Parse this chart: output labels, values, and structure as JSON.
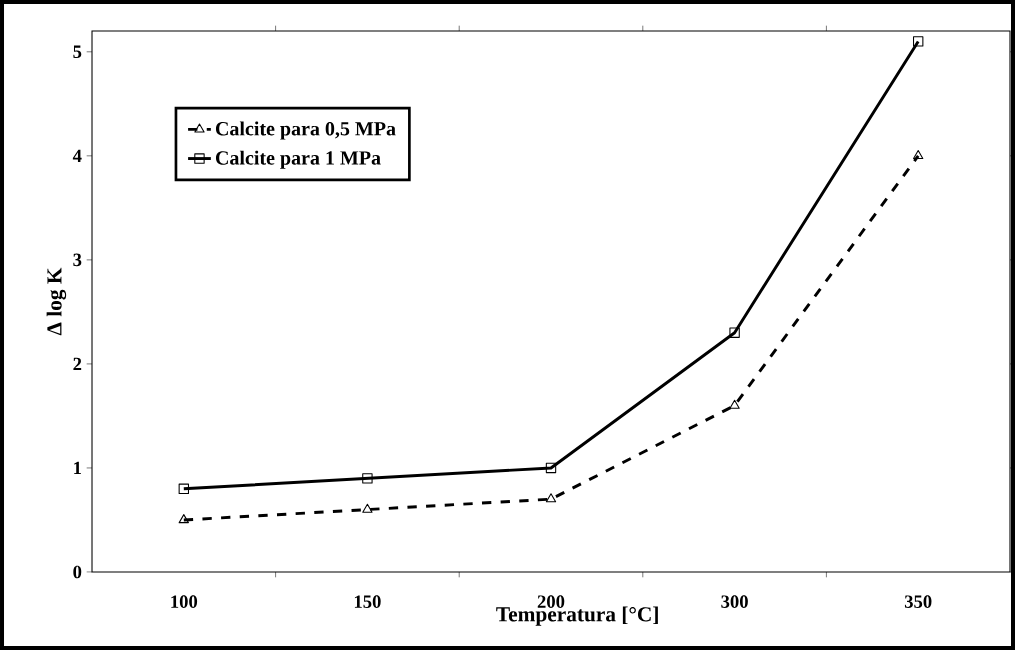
{
  "chart_data": {
    "type": "line",
    "xlabel": "Temperatura [°C]",
    "ylabel": "Δ log K",
    "categories": [
      "100",
      "150",
      "200",
      "300",
      "350"
    ],
    "series": [
      {
        "name": "Calcite para 0,5 MPa",
        "color": "#000000",
        "values": [
          0.5,
          0.6,
          0.7,
          1.6,
          4.0
        ],
        "marker": "triangle",
        "line_style": "dashed"
      },
      {
        "name": "Calcite para 1 MPa",
        "color": "#000000",
        "values": [
          0.8,
          0.9,
          1.0,
          2.3,
          5.1
        ],
        "marker": "square",
        "line_style": "solid"
      }
    ],
    "ylim": [
      0,
      5.2
    ],
    "yticks": [
      0,
      1,
      2,
      3,
      4,
      5
    ],
    "grid": false,
    "legend": "top left"
  }
}
